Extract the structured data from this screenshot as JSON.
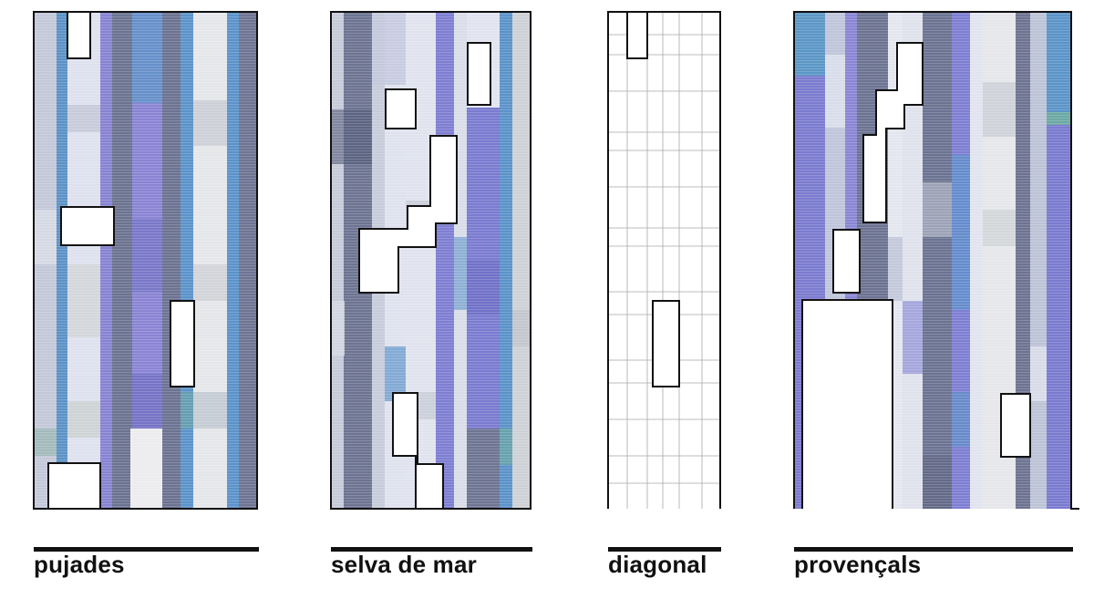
{
  "panels": [
    {
      "id": "pujades",
      "label": "pujades",
      "style": "colored"
    },
    {
      "id": "selva-de-mar",
      "label": "selva de mar",
      "style": "colored"
    },
    {
      "id": "diagonal",
      "label": "diagonal",
      "style": "grid"
    },
    {
      "id": "provencals",
      "label": "provençals",
      "style": "colored"
    }
  ],
  "colors": {
    "outline": "#111111",
    "grid_line": "#9a9a9a",
    "palette": [
      "#c9ccda",
      "#dfe2ee",
      "#5b93c9",
      "#8a86d4",
      "#6d7390",
      "#e7e8ea",
      "#9fa8bf",
      "#7b7fd0",
      "#bcc3d2"
    ]
  }
}
